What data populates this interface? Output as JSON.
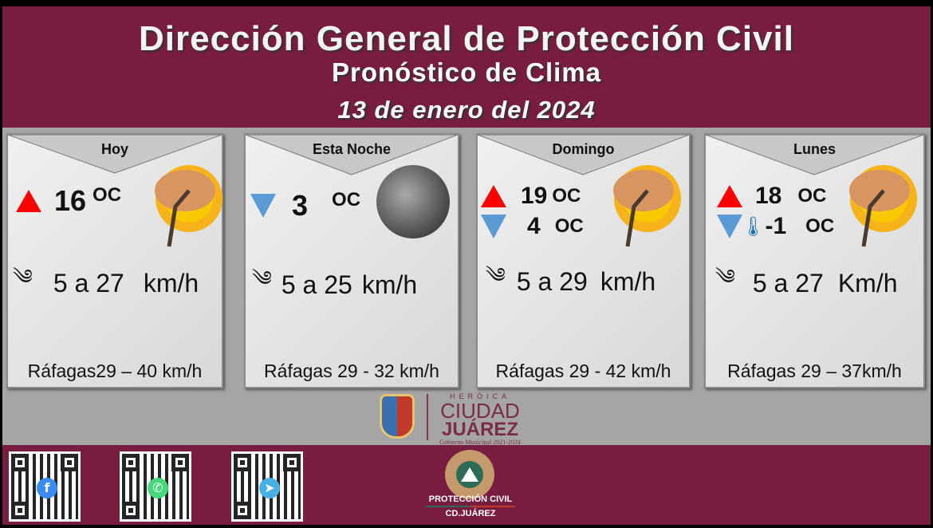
{
  "header": {
    "title": "Dirección General de Protección Civil",
    "subtitle": "Pronóstico de Clima",
    "date": "13 de enero del 2024"
  },
  "colors": {
    "maroon": "#781c40",
    "gray": "#a5a5a5",
    "up_arrow": "#ff0000",
    "down_arrow": "#5b9bd5"
  },
  "cards": [
    {
      "day": "Hoy",
      "icon": "windy-sun-tree-icon",
      "max": "16",
      "max_unit": "OC",
      "wind": "5 a 27",
      "wind_unit": "km/h",
      "gusts": "Ráfagas29 – 40 km/h"
    },
    {
      "day": "Esta Noche",
      "icon": "moon-icon",
      "min": "3",
      "min_unit": "OC",
      "wind": "5 a 25",
      "wind_unit": "km/h",
      "gusts": "Ráfagas 29 - 32 km/h"
    },
    {
      "day": "Domingo",
      "icon": "windy-sun-tree-icon",
      "max": "19",
      "max_unit": "OC",
      "min": "4",
      "min_unit": "OC",
      "wind": "5 a 29",
      "wind_unit": "km/h",
      "gusts": "Ráfagas 29 - 42 km/h"
    },
    {
      "day": "Lunes",
      "icon": "windy-sun-tree-icon",
      "max": "18",
      "max_unit": "OC",
      "min": "-1",
      "min_unit": "OC",
      "wind": "5 a 27",
      "wind_unit": "Km/h",
      "gusts": "Ráfagas 29 – 37km/h"
    }
  ],
  "logos": {
    "city_small": "HERÓICA",
    "city_big": "CIUDAD",
    "city_name": "JUÁREZ",
    "gov": "Gobierno Municipal 2021-2024",
    "pc_1": "PROTECCIÓN CIVIL",
    "pc_2": "CD.JUÁREZ"
  },
  "qr_codes": [
    {
      "icon": "facebook-icon",
      "glyph": "f"
    },
    {
      "icon": "whatsapp-icon",
      "glyph": "✆"
    },
    {
      "icon": "telegram-icon",
      "glyph": "➤"
    }
  ]
}
